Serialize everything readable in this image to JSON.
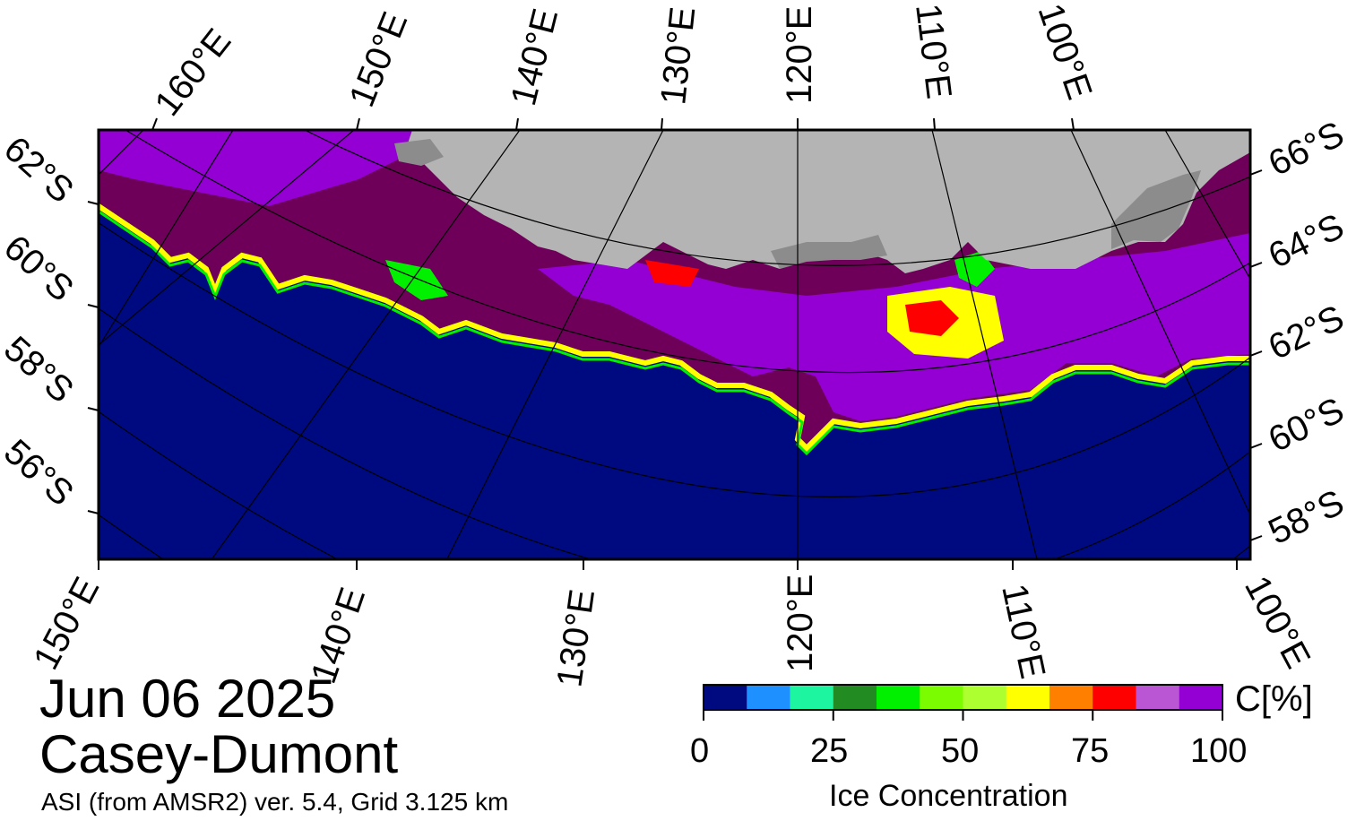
{
  "map": {
    "date": "Jun 06 2025",
    "region": "Casey-Dumont",
    "product": "ASI (from AMSR2) ver. 5.4,  Grid 3.125 km",
    "colors": {
      "ocean": "#000a80",
      "land": "#b4b4b4",
      "ice_shelf": "#8c8c8c",
      "frame": "#000000",
      "graticule": "#000000"
    },
    "top_lon_labels": [
      "160°E",
      "150°E",
      "140°E",
      "130°E",
      "120°E",
      "110°E",
      "100°E"
    ],
    "bottom_lon_labels": [
      "150°E",
      "140°E",
      "130°E",
      "120°E",
      "110°E",
      "100°E"
    ],
    "left_lat_labels": [
      "62°S",
      "60°S",
      "58°S",
      "56°S"
    ],
    "right_lat_labels": [
      "66°S",
      "64°S",
      "62°S",
      "60°S",
      "58°S"
    ]
  },
  "colorbar": {
    "title": "Ice Concentration",
    "unit": "C[%]",
    "ticks": [
      "0",
      "25",
      "50",
      "75",
      "100"
    ],
    "colors": [
      "#000a80",
      "#1e90ff",
      "#1ef5a0",
      "#228b22",
      "#00f000",
      "#7cfc00",
      "#adff2f",
      "#ffff00",
      "#ff8000",
      "#ff0000",
      "#ba55d3",
      "#9400d3",
      "#6e005a"
    ]
  }
}
